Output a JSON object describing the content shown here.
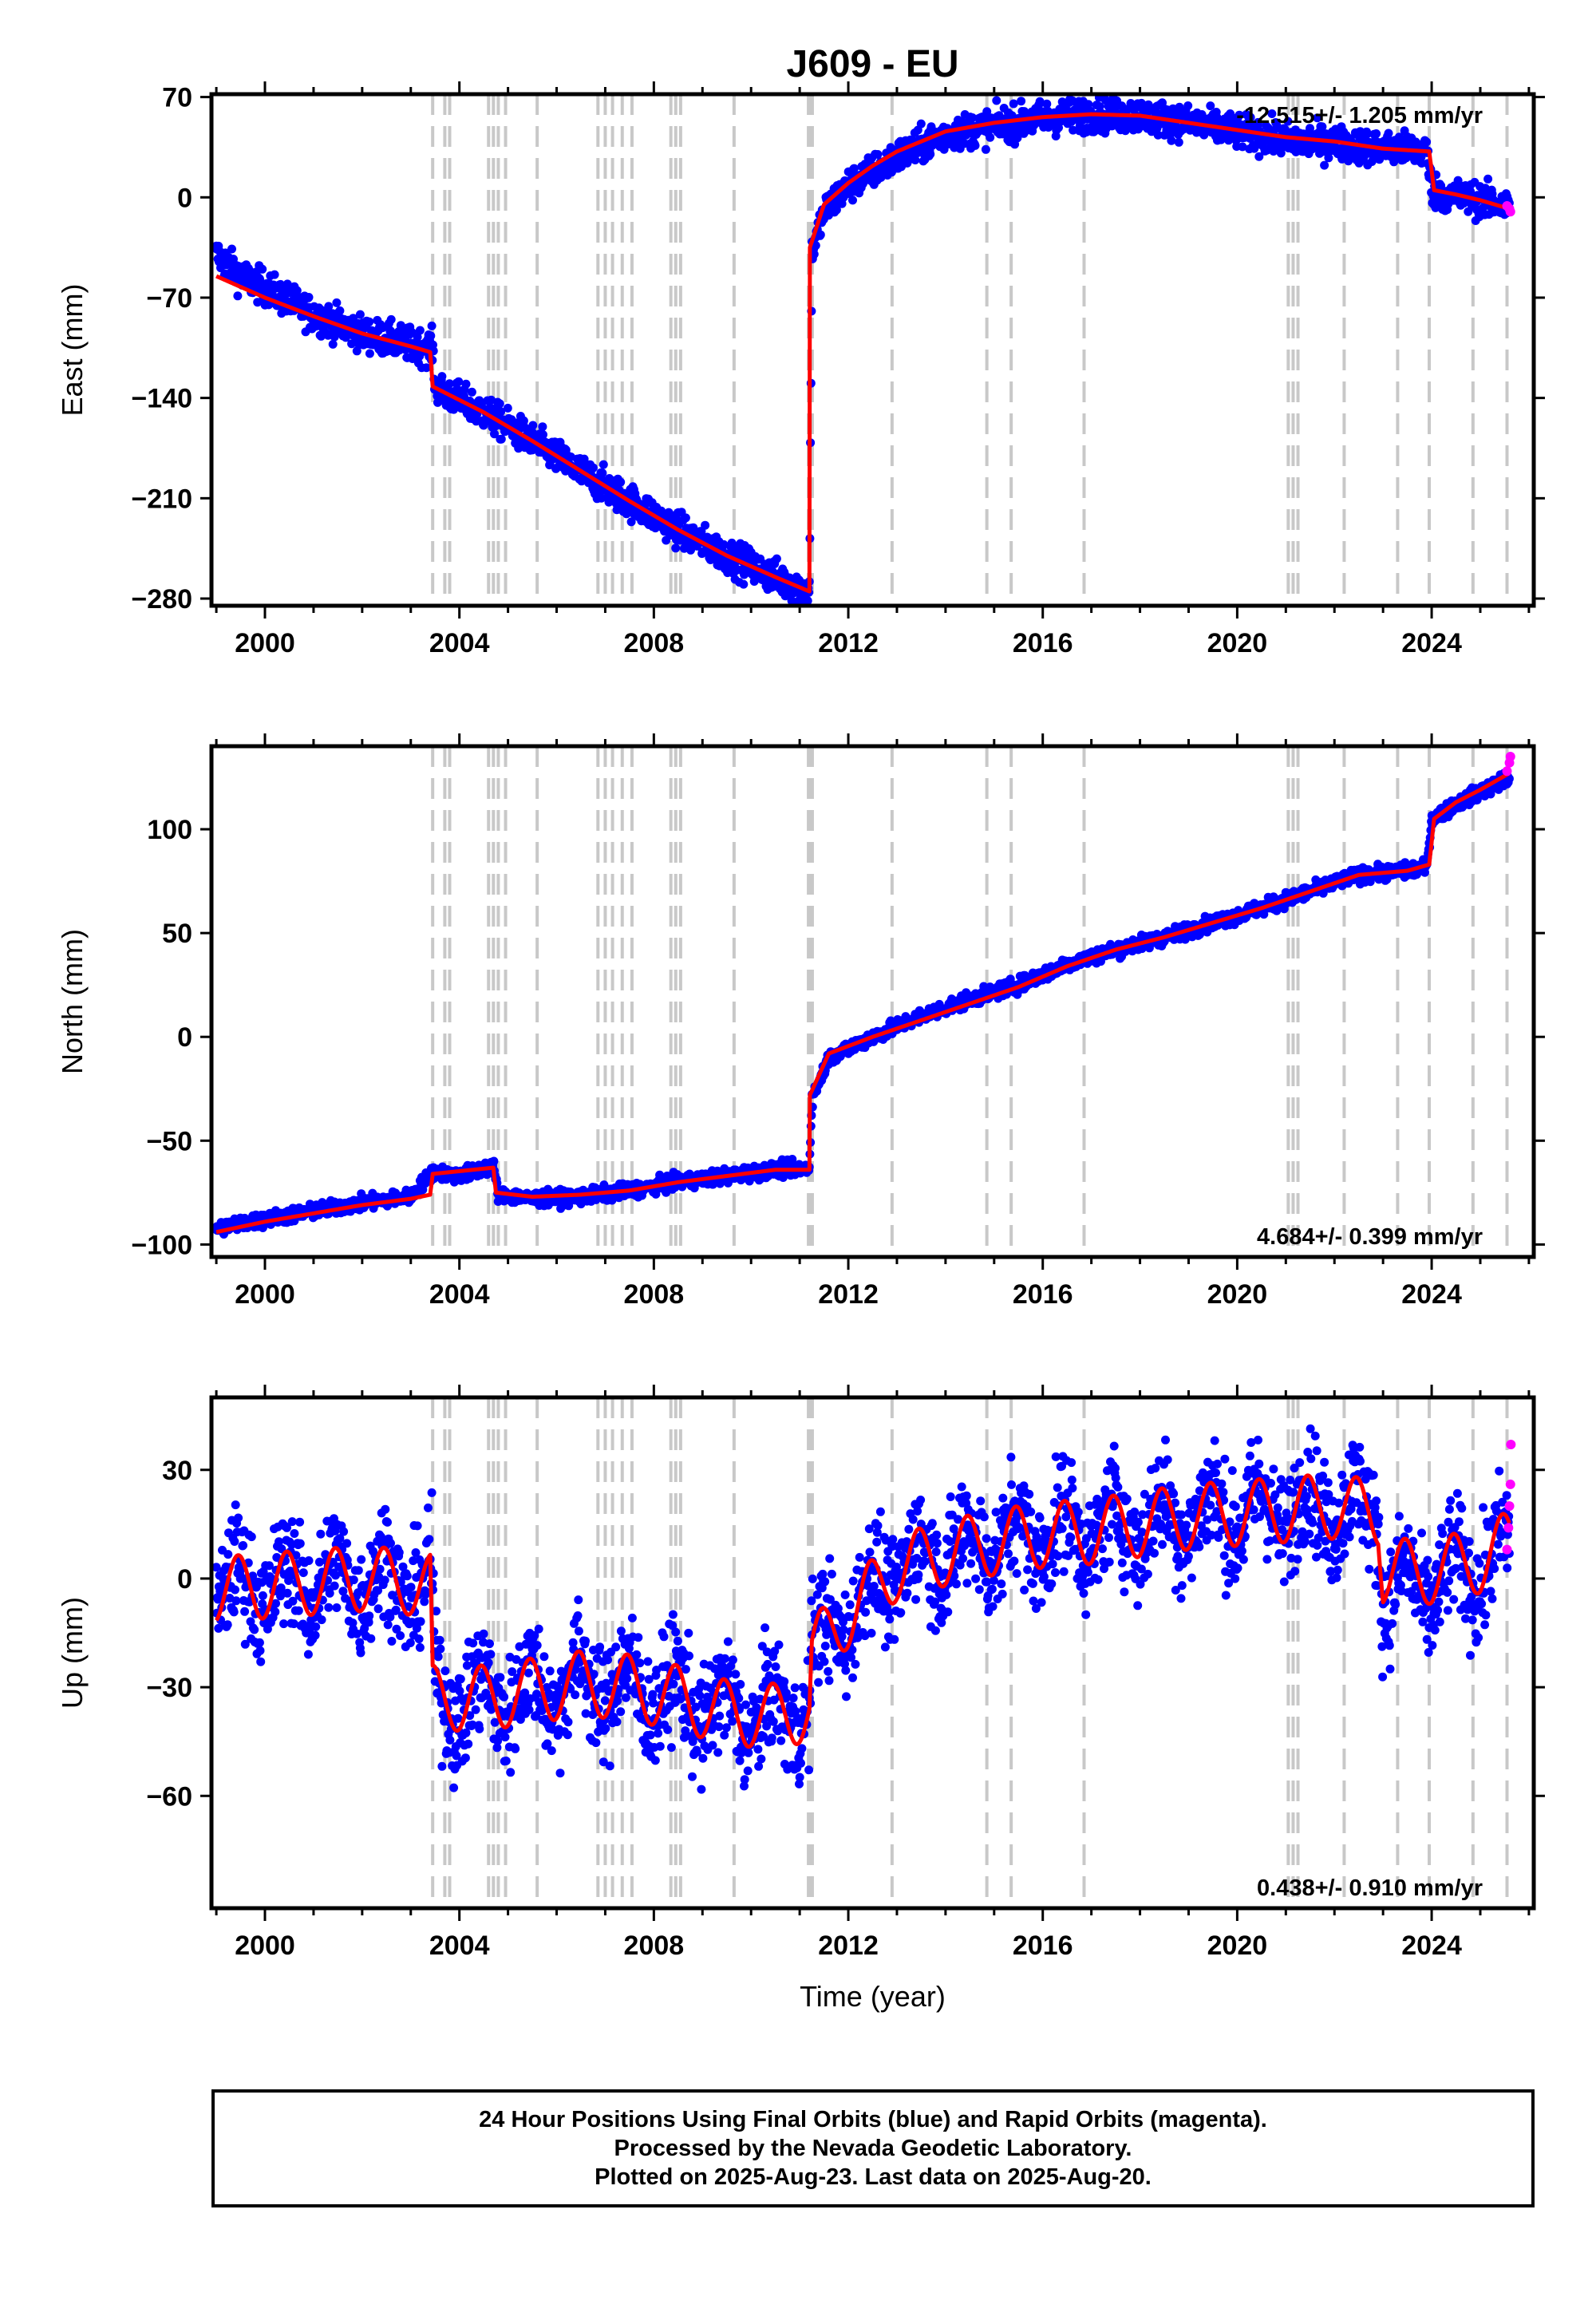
{
  "chart_data": [
    {
      "type": "scatter",
      "title": "J609 - EU",
      "ylabel": "East (mm)",
      "xlabel": "",
      "xlim": [
        1998.9,
        2026.1
      ],
      "ylim": [
        -285,
        72
      ],
      "yticks": [
        70,
        0,
        -70,
        -140,
        -210,
        -280
      ],
      "xticks": [
        2000,
        2004,
        2008,
        2012,
        2016,
        2020,
        2024
      ],
      "rate_label": "-12.515+/- 1.205 mm/yr",
      "rate_position": "top-right",
      "grid": false,
      "series": [
        {
          "color": "#0000ff",
          "scatter": 34,
          "x": [
            1999.0,
            1999.5,
            2000.0,
            2001.0,
            2002.0,
            2003.0,
            2003.45,
            2003.5,
            2004.5,
            2005.5,
            2006.5,
            2007.5,
            2008.5,
            2009.5,
            2010.5,
            2011.2,
            2011.25,
            2011.5,
            2012.0,
            2013.0,
            2014.0,
            2015.0,
            2016.0,
            2017.0,
            2018.0,
            2019.0,
            2020.0,
            2021.0,
            2022.0,
            2023.0,
            2023.9,
            2024.0,
            2024.3,
            2025.0,
            2025.6
          ],
          "y": [
            -40,
            -55,
            -63,
            -82,
            -95,
            -103,
            -105,
            -133,
            -150,
            -170,
            -192,
            -212,
            -232,
            -250,
            -265,
            -275,
            -40,
            -10,
            8,
            28,
            44,
            50,
            55,
            58,
            57,
            52,
            46,
            40,
            38,
            34,
            33,
            5,
            2,
            -2,
            -7
          ]
        },
        {
          "color": "#ff0000",
          "kind": "line",
          "x": [
            1999.0,
            2000.0,
            2001.0,
            2002.0,
            2003.0,
            2003.4,
            2003.45,
            2004.5,
            2005.5,
            2006.5,
            2007.5,
            2008.5,
            2009.5,
            2010.5,
            2011.2,
            2011.21,
            2011.5,
            2012.0,
            2012.5,
            2013.0,
            2014.0,
            2015.0,
            2016.0,
            2017.0,
            2018.0,
            2019.0,
            2020.0,
            2021.0,
            2022.0,
            2023.0,
            2023.95,
            2024.05,
            2024.5,
            2025.0,
            2025.6
          ],
          "y": [
            -55,
            -70,
            -83,
            -95,
            -104,
            -108,
            -132,
            -150,
            -170,
            -191,
            -212,
            -232,
            -250,
            -265,
            -275,
            -35,
            -5,
            10,
            22,
            32,
            46,
            52,
            56,
            58,
            57,
            52,
            47,
            42,
            39,
            34,
            32,
            5,
            2,
            -2,
            -8
          ]
        },
        {
          "color": "#ff00ff",
          "x": [
            2025.55,
            2025.6,
            2025.62
          ],
          "y": [
            -6,
            -8,
            -10
          ]
        }
      ]
    },
    {
      "type": "scatter",
      "title": "",
      "ylabel": "North (mm)",
      "xlabel": "",
      "xlim": [
        1998.9,
        2026.1
      ],
      "ylim": [
        -106,
        140
      ],
      "yticks": [
        100,
        50,
        0,
        -50,
        -100
      ],
      "xticks": [
        2000,
        2004,
        2008,
        2012,
        2016,
        2020,
        2024
      ],
      "rate_label": "4.684+/- 0.399 mm/yr",
      "rate_position": "bottom-right",
      "grid": false,
      "series": [
        {
          "color": "#0000ff",
          "scatter": 10,
          "x": [
            1999.0,
            2000.0,
            2001.0,
            2002.0,
            2003.0,
            2003.45,
            2004.0,
            2004.7,
            2004.8,
            2005.5,
            2006.5,
            2007.5,
            2008.5,
            2009.5,
            2010.5,
            2011.2,
            2011.25,
            2011.6,
            2012.5,
            2013.5,
            2014.5,
            2015.5,
            2016.5,
            2017.5,
            2018.5,
            2019.5,
            2020.5,
            2021.5,
            2022.5,
            2023.5,
            2023.9,
            2024.0,
            2024.5,
            2025.0,
            2025.6
          ],
          "y": [
            -92,
            -88,
            -84,
            -80,
            -77,
            -65,
            -67,
            -62,
            -76,
            -78,
            -77,
            -74,
            -70,
            -67,
            -64,
            -63,
            -30,
            -10,
            0,
            10,
            18,
            25,
            35,
            42,
            48,
            55,
            62,
            70,
            78,
            80,
            82,
            105,
            112,
            118,
            125
          ]
        },
        {
          "color": "#ff0000",
          "kind": "line",
          "x": [
            1999.0,
            2000.0,
            2001.0,
            2002.0,
            2003.0,
            2003.4,
            2003.45,
            2004.7,
            2004.75,
            2005.5,
            2006.5,
            2007.5,
            2008.5,
            2009.5,
            2010.5,
            2011.2,
            2011.21,
            2011.6,
            2012.5,
            2013.5,
            2014.5,
            2015.5,
            2016.5,
            2017.5,
            2018.5,
            2019.5,
            2020.5,
            2021.5,
            2022.5,
            2023.5,
            2023.95,
            2024.05,
            2024.5,
            2025.0,
            2025.6
          ],
          "y": [
            -94,
            -89,
            -85,
            -81,
            -78,
            -76,
            -66,
            -63,
            -75,
            -77,
            -76,
            -74,
            -70,
            -67,
            -64,
            -64,
            -28,
            -8,
            0,
            8,
            16,
            24,
            34,
            42,
            48,
            55,
            62,
            70,
            78,
            80,
            83,
            105,
            113,
            119,
            127
          ]
        },
        {
          "color": "#ff00ff",
          "x": [
            2025.55,
            2025.6,
            2025.62
          ],
          "y": [
            128,
            132,
            135
          ]
        }
      ]
    },
    {
      "type": "scatter",
      "title": "",
      "ylabel": "Up (mm)",
      "xlabel": "Time (year)",
      "xlim": [
        1998.9,
        2026.1
      ],
      "ylim": [
        -91,
        50
      ],
      "yticks": [
        30,
        0,
        -30,
        -60
      ],
      "xticks": [
        2000,
        2004,
        2008,
        2012,
        2016,
        2020,
        2024
      ],
      "rate_label": "0.438+/- 0.910 mm/yr",
      "rate_position": "bottom-right",
      "grid": false,
      "series": [
        {
          "color": "#0000ff",
          "scatter": 44,
          "seasonal": 7,
          "x": [
            1999.0,
            2000.0,
            2001.0,
            2002.0,
            2003.0,
            2003.45,
            2003.5,
            2004.5,
            2005.5,
            2006.5,
            2007.5,
            2008.5,
            2009.5,
            2010.5,
            2011.2,
            2011.25,
            2012.0,
            2013.0,
            2014.0,
            2015.0,
            2016.0,
            2017.0,
            2018.0,
            2019.0,
            2020.0,
            2021.0,
            2022.0,
            2022.9,
            2023.0,
            2024.0,
            2025.0,
            2025.6
          ],
          "y": [
            -3,
            -2,
            -1,
            0,
            -1,
            -2,
            -34,
            -33,
            -31,
            -29,
            -30,
            -33,
            -37,
            -38,
            -35,
            -20,
            -10,
            3,
            7,
            10,
            12,
            13,
            15,
            17,
            18,
            19,
            20,
            18,
            -4,
            -2,
            3,
            8
          ]
        },
        {
          "color": "#ff0000",
          "kind": "line",
          "seasonal": 9,
          "x": [
            1999.0,
            2000.0,
            2001.0,
            2002.0,
            2003.0,
            2003.4,
            2003.45,
            2004.5,
            2005.5,
            2006.5,
            2007.5,
            2008.5,
            2009.5,
            2010.5,
            2011.2,
            2011.25,
            2012.0,
            2013.0,
            2014.0,
            2015.0,
            2016.0,
            2017.0,
            2018.0,
            2019.0,
            2020.0,
            2021.0,
            2022.0,
            2022.9,
            2023.0,
            2024.0,
            2025.0,
            2025.6
          ],
          "y": [
            -3,
            -2,
            -1,
            0,
            -1,
            -2,
            -33,
            -33,
            -31,
            -29,
            -30,
            -33,
            -37,
            -38,
            -36,
            -20,
            -10,
            3,
            7,
            10,
            12,
            13,
            15,
            17,
            18,
            19,
            20,
            18,
            2,
            2,
            5,
            10
          ]
        },
        {
          "color": "#ff00ff",
          "x": [
            2025.55,
            2025.58,
            2025.6,
            2025.62,
            2025.63
          ],
          "y": [
            8,
            14,
            20,
            26,
            37
          ]
        }
      ]
    }
  ],
  "vlines": [
    2003.45,
    2003.7,
    2003.8,
    2004.6,
    2004.7,
    2004.8,
    2004.95,
    2005.6,
    2006.85,
    2007.0,
    2007.15,
    2007.35,
    2007.55,
    2008.35,
    2008.45,
    2008.55,
    2009.65,
    2011.18,
    2011.22,
    2011.26,
    2012.9,
    2014.85,
    2015.35,
    2016.85,
    2021.05,
    2021.15,
    2021.25,
    2022.2,
    2023.3,
    2023.95,
    2024.85,
    2025.55
  ],
  "legend": {
    "lines": [
      "24 Hour Positions Using Final Orbits (blue) and Rapid Orbits (magenta).",
      "Processed by the Nevada Geodetic Laboratory.",
      "Plotted on 2025-Aug-23. Last data on 2025-Aug-20."
    ]
  }
}
